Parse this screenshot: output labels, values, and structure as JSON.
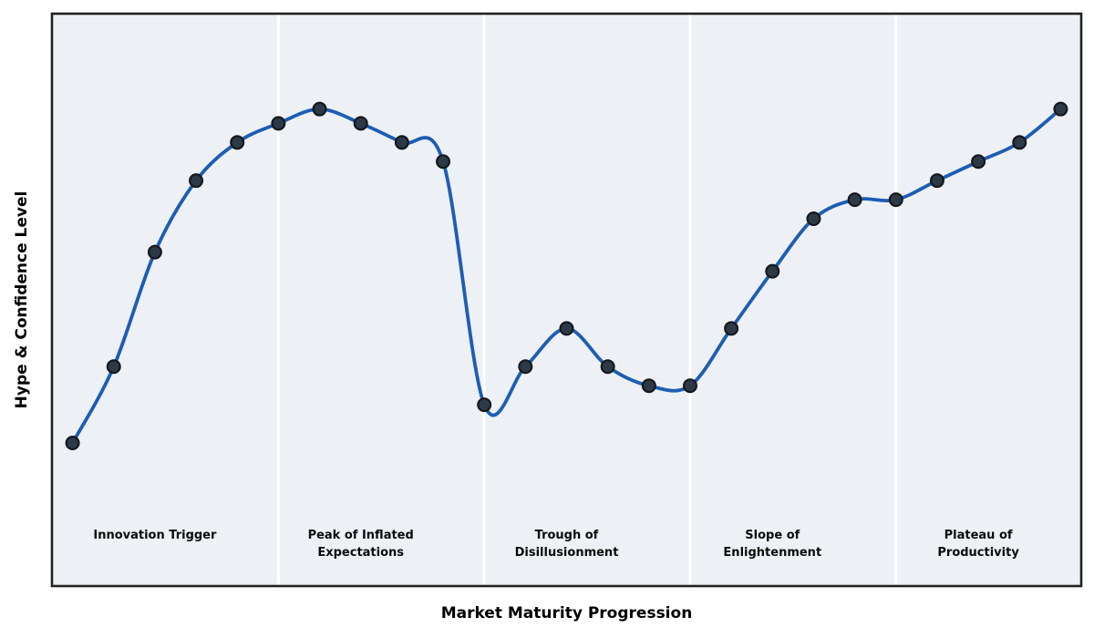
{
  "chart_data": {
    "type": "line",
    "title": "",
    "xlabel": "Market Maturity Progression",
    "ylabel": "Hype & Confidence Level",
    "x": [
      0,
      1,
      2,
      3,
      4,
      5,
      6,
      7,
      8,
      9,
      10,
      11,
      12,
      13,
      14,
      15,
      16,
      17,
      18,
      19,
      20,
      21,
      22,
      23,
      24
    ],
    "values": [
      30,
      46,
      70,
      85,
      93,
      97,
      100,
      97,
      93,
      89,
      38,
      46,
      54,
      46,
      42,
      42,
      54,
      66,
      77,
      81,
      81,
      85,
      89,
      93,
      100
    ],
    "xlim": [
      -0.5,
      24.5
    ],
    "ylim": [
      0,
      120
    ],
    "grid": false,
    "legend_position": "none",
    "line_style": "smooth-cubic-spline",
    "marker": "circle",
    "ticks": "none",
    "phase_boundaries_x": [
      5,
      10,
      15,
      20
    ],
    "phases": [
      {
        "label_lines": [
          "Innovation Trigger"
        ],
        "center_x": 2
      },
      {
        "label_lines": [
          "Peak of Inflated",
          "Expectations"
        ],
        "center_x": 7
      },
      {
        "label_lines": [
          "Trough of",
          "Disillusionment"
        ],
        "center_x": 12
      },
      {
        "label_lines": [
          "Slope of",
          "Enlightenment"
        ],
        "center_x": 17
      },
      {
        "label_lines": [
          "Plateau of",
          "Productivity"
        ],
        "center_x": 22
      }
    ],
    "colors": {
      "line": "#1d5db4",
      "marker_fill": "#2c3a48",
      "marker_edge": "#15181c",
      "plot_background": "#edf1f6",
      "phase_separator": "#ffffff",
      "border": "#212121",
      "text": "#0a0a0a"
    }
  }
}
